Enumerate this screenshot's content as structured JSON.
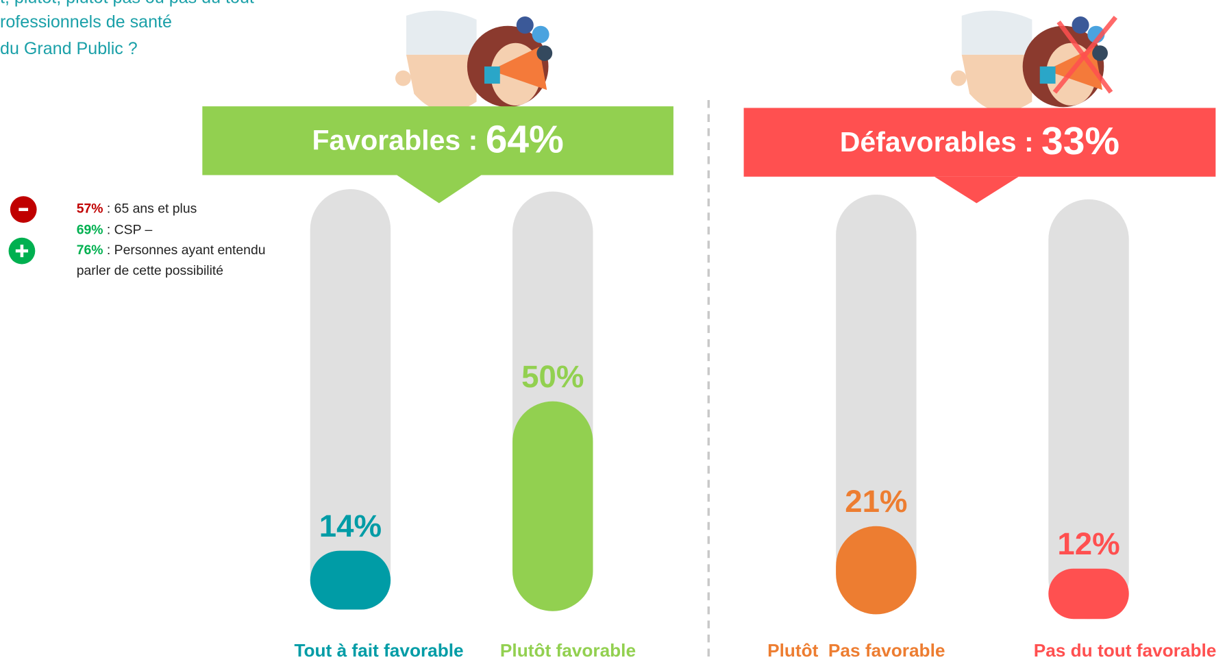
{
  "header": {
    "lines": [
      "t, plutôt, plutôt pas ou pas du tout",
      "rofessionnels de santé",
      "du Grand Public ?"
    ]
  },
  "notes": [
    {
      "value": "57%",
      "text": " : 65 ans et plus",
      "color": "#c00000"
    },
    {
      "value": "69%",
      "text": " : CSP –",
      "color": "#00b050"
    },
    {
      "value": "76%",
      "text": " : Personnes ayant entendu",
      "continuation": "parler de cette possibilité",
      "color": "#00b050"
    }
  ],
  "chart_data": {
    "type": "bar",
    "ylim": [
      0,
      100
    ],
    "track_color": "#e0e0e0",
    "groups": [
      {
        "label": "Favorables : ",
        "value": 64,
        "value_label": "64%",
        "color": "#92d050"
      },
      {
        "label": "Défavorables : ",
        "value": 33,
        "value_label": "33%",
        "color": "#ff5050"
      }
    ],
    "categories": [
      "Tout à fait favorable",
      "Plutôt favorable",
      "Plutôt  Pas favorable",
      "Pas du tout favorable"
    ],
    "values": [
      14,
      50,
      21,
      12
    ],
    "value_labels": [
      "14%",
      "50%",
      "21%",
      "12%"
    ],
    "colors": [
      "#009ca6",
      "#92d050",
      "#ed7d31",
      "#ff5050"
    ]
  }
}
